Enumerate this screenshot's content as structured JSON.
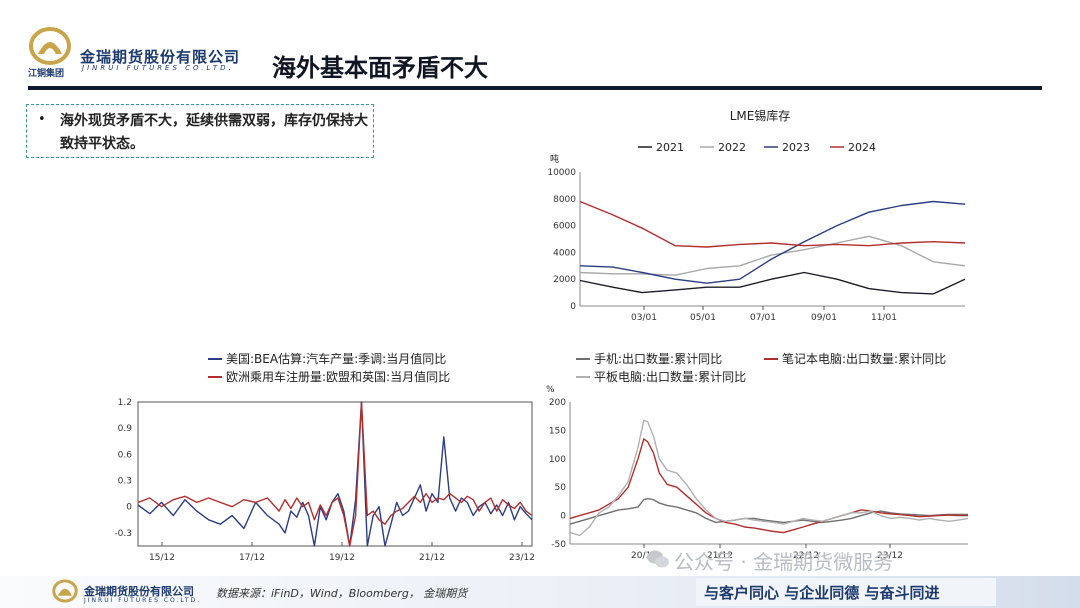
{
  "header": {
    "logo_sub": "江铜集团",
    "brand_cn": "金瑞期货股份有限公司",
    "brand_en": "JINRUI FUTURES CO.LTD.",
    "title": "海外基本面矛盾不大"
  },
  "bullet": {
    "mark": "•",
    "text": "海外现货矛盾不大，延续供需双弱，库存仍保持大致持平状态。"
  },
  "chart_data": [
    {
      "id": "lme-tin",
      "type": "line",
      "title": "LME锡库存",
      "unit": "吨",
      "ylim": [
        0,
        10000
      ],
      "y_ticks": [
        "0",
        "2000",
        "4000",
        "6000",
        "8000",
        "10000"
      ],
      "x_ticks": [
        "03/01",
        "05/01",
        "07/01",
        "09/01",
        "11/01"
      ],
      "x_tick_pos": [
        64,
        123,
        183,
        244,
        304
      ],
      "x": [
        1,
        32,
        60,
        91,
        121,
        152,
        182,
        213,
        244,
        274,
        305,
        335,
        365
      ],
      "legend": [
        "2021",
        "2022",
        "2023",
        "2024"
      ],
      "series": [
        {
          "name": "2021",
          "color": "#1c1c28",
          "values": [
            1900,
            1400,
            1000,
            1200,
            1400,
            1400,
            2000,
            2500,
            2000,
            1300,
            1000,
            900,
            2000
          ]
        },
        {
          "name": "2022",
          "color": "#a8a8a8",
          "values": [
            2500,
            2400,
            2400,
            2300,
            2800,
            3000,
            3800,
            4200,
            4700,
            5200,
            4500,
            3300,
            3000
          ]
        },
        {
          "name": "2023",
          "color": "#2b3d84",
          "values": [
            3000,
            2900,
            2500,
            2000,
            1700,
            2000,
            3500,
            4800,
            6000,
            7000,
            7500,
            7800,
            7600
          ]
        },
        {
          "name": "2024",
          "color": "#b32d2d",
          "values": [
            7800,
            6800,
            5800,
            4500,
            4400,
            4600,
            4700,
            4500,
            4600,
            4500,
            4700,
            4800,
            4700
          ]
        }
      ]
    },
    {
      "id": "auto-yoy",
      "type": "line",
      "ylim": [
        -0.45,
        1.2
      ],
      "y_ticks": [
        "-0.3",
        "0",
        "0.3",
        "0.6",
        "0.9",
        "1.2"
      ],
      "x_ticks": [
        "15/12",
        "17/12",
        "19/12",
        "21/12",
        "23/12"
      ],
      "x_tick_pos": [
        24,
        114,
        204,
        294,
        384
      ],
      "x": [
        0,
        12,
        24,
        36,
        48,
        60,
        72,
        84,
        96,
        108,
        120,
        132,
        144,
        150,
        156,
        162,
        168,
        174,
        180,
        186,
        192,
        198,
        204,
        210,
        216,
        222,
        228,
        234,
        240,
        246,
        252,
        258,
        264,
        270,
        276,
        282,
        288,
        294,
        300,
        306,
        312,
        318,
        324,
        330,
        336,
        342,
        348,
        354,
        360,
        366,
        372,
        378,
        384,
        390,
        396,
        402
      ],
      "legend": [
        "美国:BEA估算:汽车产量:季调:当月值同比",
        "欧洲乘用车注册量:欧盟和英国:当月值同比"
      ],
      "series": [
        {
          "name": "美国:BEA估算:汽车产量:季调:当月值同比",
          "color": "#2b3d84",
          "values": [
            0.02,
            -0.08,
            0.05,
            -0.1,
            0.08,
            -0.05,
            -0.15,
            -0.2,
            -0.1,
            -0.25,
            0.05,
            -0.1,
            -0.2,
            -0.3,
            -0.05,
            -0.12,
            0.05,
            -0.1,
            -0.45,
            0.0,
            -0.15,
            0.05,
            0.15,
            -0.05,
            -0.45,
            0.08,
            1.2,
            -0.45,
            -0.1,
            0.0,
            -0.45,
            -0.2,
            0.05,
            -0.1,
            -0.05,
            0.1,
            0.25,
            -0.05,
            0.15,
            0.05,
            0.8,
            0.1,
            -0.05,
            0.1,
            0.05,
            -0.1,
            0.0,
            0.05,
            -0.08,
            0.02,
            -0.1,
            0.05,
            -0.15,
            0.0,
            -0.08,
            -0.15
          ]
        },
        {
          "name": "欧洲乘用车注册量:欧盟和英国:当月值同比",
          "color": "#b32d2d",
          "values": [
            0.05,
            0.1,
            0.0,
            0.08,
            0.12,
            0.05,
            0.1,
            0.05,
            0.0,
            0.08,
            0.05,
            0.1,
            -0.05,
            0.08,
            -0.02,
            0.1,
            0.0,
            0.05,
            -0.15,
            0.02,
            -0.1,
            0.05,
            0.1,
            -0.1,
            -0.45,
            -0.1,
            1.2,
            -0.1,
            -0.05,
            -0.15,
            -0.2,
            -0.1,
            -0.05,
            -0.02,
            0.05,
            0.12,
            0.05,
            0.15,
            0.05,
            0.1,
            0.08,
            0.15,
            0.1,
            0.05,
            0.12,
            0.08,
            -0.05,
            0.05,
            0.1,
            -0.05,
            0.08,
            0.02,
            -0.02,
            0.05,
            -0.05,
            -0.1
          ]
        }
      ]
    },
    {
      "id": "electronics-export",
      "type": "line",
      "unit": "%",
      "ylim": [
        -50,
        200
      ],
      "y_ticks": [
        "-50",
        "0",
        "50",
        "100",
        "150",
        "200"
      ],
      "x_ticks": [
        "20/12",
        "21/12",
        "22/12",
        "23/12"
      ],
      "x_tick_pos": [
        74,
        150,
        236,
        320
      ],
      "x": [
        0,
        10,
        20,
        30,
        40,
        50,
        60,
        70,
        76,
        80,
        86,
        92,
        100,
        110,
        120,
        130,
        140,
        150,
        160,
        170,
        180,
        190,
        200,
        210,
        220,
        230,
        240,
        250,
        260,
        270,
        280,
        290,
        300,
        310,
        320,
        330,
        340,
        350,
        360,
        370,
        380,
        390,
        400,
        410
      ],
      "legend": [
        "手机:出口数量:累计同比",
        "笔记本电脑:出口数量:累计同比",
        "平板电脑:出口数量:累计同比"
      ],
      "series": [
        {
          "name": "手机:出口数量:累计同比",
          "color": "#6f6f6f",
          "values": [
            -15,
            -10,
            -5,
            0,
            5,
            10,
            12,
            15,
            28,
            30,
            28,
            22,
            18,
            15,
            10,
            5,
            -5,
            -12,
            -10,
            -8,
            -5,
            -5,
            -8,
            -10,
            -12,
            -10,
            -8,
            -10,
            -12,
            -10,
            -8,
            -5,
            0,
            5,
            8,
            5,
            3,
            2,
            1,
            0,
            1,
            2,
            2,
            2
          ]
        },
        {
          "name": "笔记本电脑:出口数量:累计同比",
          "color": "#b32d2d",
          "values": [
            -5,
            0,
            5,
            10,
            20,
            30,
            50,
            100,
            135,
            130,
            110,
            75,
            55,
            50,
            35,
            20,
            5,
            -5,
            -12,
            -15,
            -20,
            -22,
            -25,
            -28,
            -30,
            -25,
            -20,
            -15,
            -10,
            -5,
            0,
            5,
            10,
            8,
            5,
            3,
            2,
            0,
            -2,
            -1,
            0,
            1,
            0,
            0
          ]
        },
        {
          "name": "平板电脑:出口数量:累计同比",
          "color": "#b0b0b0",
          "values": [
            -30,
            -35,
            -20,
            5,
            15,
            35,
            60,
            120,
            168,
            165,
            140,
            100,
            80,
            75,
            55,
            30,
            10,
            -5,
            -10,
            -8,
            -5,
            -8,
            -10,
            -12,
            -15,
            -10,
            -5,
            -8,
            -10,
            -5,
            0,
            5,
            5,
            8,
            0,
            -5,
            -3,
            -5,
            -8,
            -5,
            -8,
            -10,
            -8,
            -5
          ]
        }
      ]
    }
  ],
  "footer": {
    "brand_cn": "金瑞期货股份有限公司",
    "brand_en": "JINRUI FUTURES CO.LTD.",
    "source": "数据来源：iFinD，Wind，Bloomberg，  金瑞期货",
    "slogan": "与客户同心  与企业同德  与奋斗同进"
  },
  "watermark": {
    "text": "公众号 · 金瑞期货微服务"
  },
  "colors": {
    "navy": "#1d3a6e",
    "gold": "#c8a44a",
    "dash": "#3a9a8e"
  }
}
